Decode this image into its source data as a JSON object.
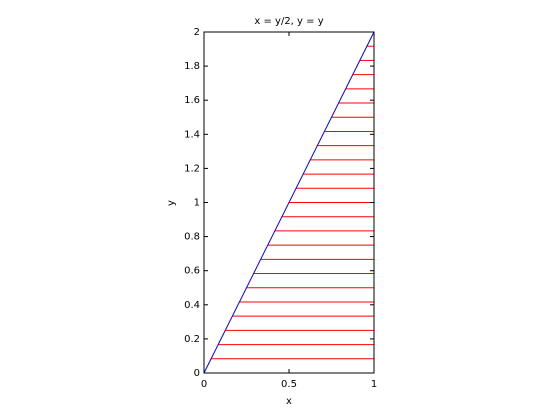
{
  "chart_data": {
    "type": "line",
    "title": "x = y/2, y = y",
    "xlabel": "x",
    "ylabel": "y",
    "xlim": [
      0,
      1
    ],
    "ylim": [
      0,
      2
    ],
    "xticks": [
      0,
      0.5,
      1
    ],
    "yticks": [
      0,
      0.2,
      0.4,
      0.6,
      0.8,
      1,
      1.2,
      1.4,
      1.6,
      1.8,
      2
    ],
    "box": true,
    "series": [
      {
        "color": "#0000ff",
        "x": [
          0,
          1
        ],
        "values": [
          0,
          2
        ]
      }
    ],
    "hlines": {
      "color": "#ff0000",
      "y": [
        0.0833,
        0.1667,
        0.25,
        0.3333,
        0.4167,
        0.5,
        0.5833,
        0.6667,
        0.75,
        0.8333,
        0.9167,
        1,
        1.0833,
        1.1667,
        1.25,
        1.3333,
        1.4167,
        1.5,
        1.5833,
        1.6667,
        1.75,
        1.8333,
        1.9167
      ],
      "xmin": [
        0.0417,
        0.0833,
        0.125,
        0.1667,
        0.2083,
        0.25,
        0.2917,
        0.3333,
        0.375,
        0.4167,
        0.4583,
        0.5,
        0.5417,
        0.5833,
        0.625,
        0.6667,
        0.7083,
        0.75,
        0.7917,
        0.8333,
        0.875,
        0.9167,
        0.9583
      ],
      "xmax": 1
    }
  }
}
